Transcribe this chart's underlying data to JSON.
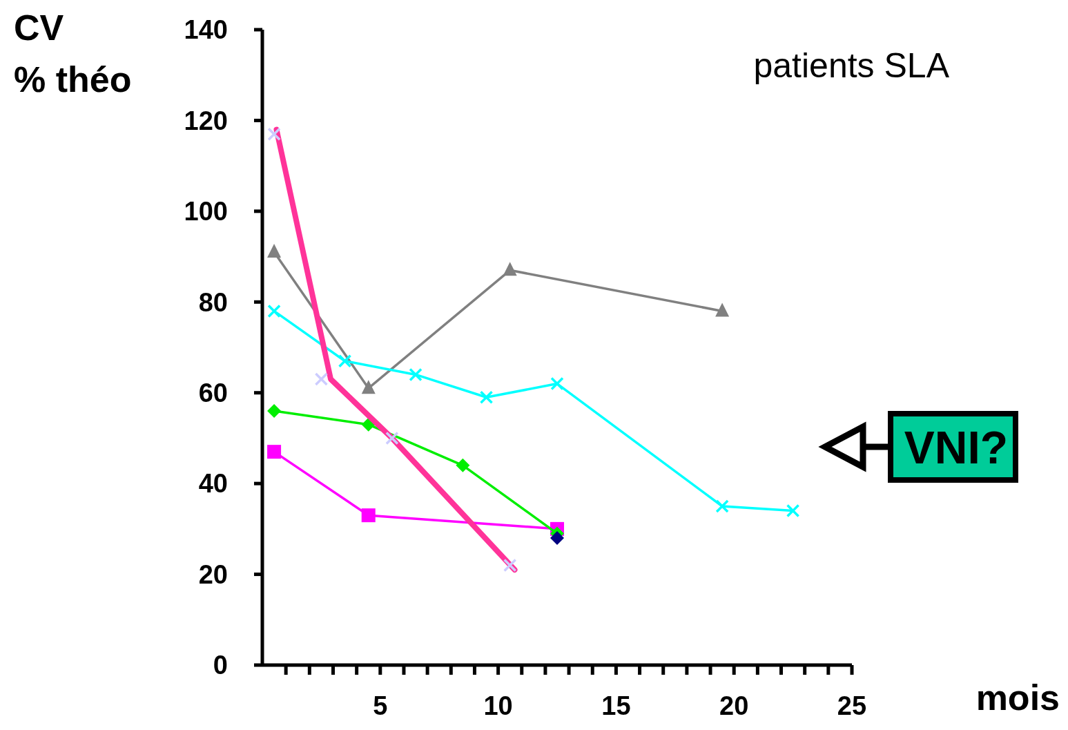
{
  "chart_data": {
    "type": "line",
    "ylabel": "CV\n% théo",
    "xlabel": "mois",
    "annotations": [
      "patients SLA",
      "VNI?"
    ],
    "xlim": [
      0,
      25
    ],
    "ylim": [
      0,
      140
    ],
    "yticks": [
      0,
      20,
      40,
      60,
      80,
      100,
      120,
      140
    ],
    "xticks": [
      {
        "value": 1,
        "label": null
      },
      {
        "value": 2,
        "label": null
      },
      {
        "value": 3,
        "label": null
      },
      {
        "value": 4,
        "label": null
      },
      5,
      {
        "value": 6,
        "label": null
      },
      {
        "value": 7,
        "label": null
      },
      {
        "value": 8,
        "label": null
      },
      {
        "value": 9,
        "label": null
      },
      10,
      {
        "value": 11,
        "label": null
      },
      {
        "value": 12,
        "label": null
      },
      {
        "value": 13,
        "label": null
      },
      {
        "value": 14,
        "label": null
      },
      15,
      {
        "value": 16,
        "label": null
      },
      {
        "value": 17,
        "label": null
      },
      {
        "value": 18,
        "label": null
      },
      {
        "value": 19,
        "label": null
      },
      20,
      {
        "value": 21,
        "label": null
      },
      {
        "value": 22,
        "label": null
      },
      {
        "value": 23,
        "label": null
      },
      {
        "value": 24,
        "label": null
      },
      25
    ],
    "grid": false,
    "series": [
      {
        "color": "#808080",
        "marker": "triangle",
        "x": [
          0.5,
          4.5,
          10.5,
          19.5
        ],
        "values": [
          91,
          61,
          87,
          78
        ]
      },
      {
        "color": "#00ffff",
        "marker": "cross",
        "x": [
          0.5,
          3.5,
          6.5,
          9.5,
          12.5,
          19.5,
          22.5
        ],
        "values": [
          78,
          67,
          64,
          59,
          62,
          35,
          34
        ]
      },
      {
        "color": "#ff00ff",
        "marker": "square",
        "x": [
          0.5,
          4.5,
          12.5
        ],
        "values": [
          47,
          33,
          30
        ]
      },
      {
        "color": "#00ee00",
        "marker": "diamond",
        "x": [
          0.5,
          4.5,
          8.5,
          12.5
        ],
        "values": [
          56,
          53,
          44,
          29
        ]
      },
      {
        "color": "#000080",
        "type": "scatter",
        "marker": "diamond",
        "x": [
          12.5
        ],
        "values": [
          28
        ]
      },
      {
        "color": "#ff3399",
        "marker": "none",
        "x": [
          0.6,
          2.9,
          5.5,
          10.7
        ],
        "values": [
          118,
          63,
          50,
          21
        ]
      },
      {
        "color": "#ccccff",
        "type": "scatter",
        "marker": "cross",
        "x": [
          0.5,
          2.5,
          5.5,
          10.5
        ],
        "values": [
          117,
          63,
          50,
          22
        ]
      }
    ]
  }
}
